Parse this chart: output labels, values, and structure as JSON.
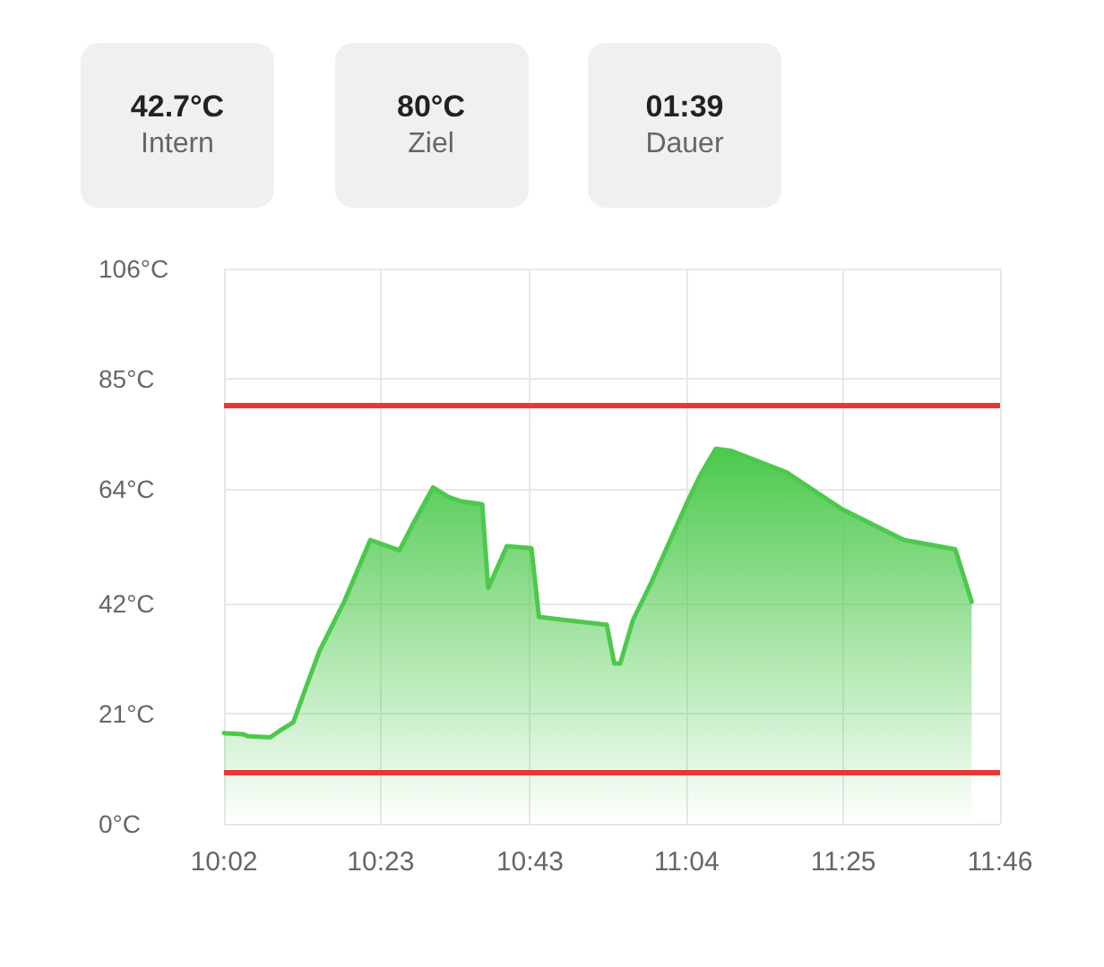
{
  "chart_data": [
    {
      "type": "other",
      "annotations": [
        "42.7°C",
        "Intern",
        "80°C",
        "Ziel",
        "01:39",
        "Dauer"
      ]
    },
    {
      "type": "area",
      "color": "#4cc94c",
      "grid": true,
      "marker": "none",
      "line_style": "solid",
      "x": [
        10.0333,
        10.075,
        10.0883,
        10.1367,
        10.1567,
        10.1883,
        10.2183,
        10.2467,
        10.3017,
        10.36,
        10.425,
        10.4583,
        10.5,
        10.535,
        10.5617,
        10.61,
        10.6233,
        10.665,
        10.72,
        10.7367,
        10.795,
        10.8883,
        10.905,
        10.9183,
        10.9467,
        10.9867,
        11.07,
        11.0967,
        11.1317,
        11.1667,
        11.29,
        11.4133,
        11.5517,
        11.6667,
        11.7033
      ],
      "values": [
        17.3,
        17.1,
        16.7,
        16.5,
        17.7,
        19.4,
        26.5,
        33.0,
        42.4,
        54.2,
        52.2,
        57.7,
        64.2,
        62.4,
        61.6,
        61.0,
        45.0,
        53.0,
        52.6,
        39.5,
        38.9,
        38.0,
        30.6,
        30.6,
        38.9,
        45.9,
        61.8,
        66.5,
        71.6,
        71.2,
        67.1,
        60.1,
        54.2,
        52.4,
        42.4
      ],
      "xlim": [
        10.0333,
        11.7667
      ],
      "xticks": [
        {
          "value": 10.0333,
          "label": "10:02"
        },
        {
          "value": 10.3833,
          "label": "10:23"
        },
        {
          "value": 10.7167,
          "label": "10:43"
        },
        {
          "value": 11.0667,
          "label": "11:04"
        },
        {
          "value": 11.4167,
          "label": "11:25"
        },
        {
          "value": 11.7667,
          "label": "11:46"
        }
      ],
      "ylim": [
        0,
        106
      ],
      "yticks": [
        {
          "value": 0,
          "label": "0°C"
        },
        {
          "value": 21,
          "label": "21°C"
        },
        {
          "value": 42,
          "label": "42°C"
        },
        {
          "value": 64,
          "label": "64°C"
        },
        {
          "value": 85,
          "label": "85°C"
        },
        {
          "value": 106,
          "label": "106°C"
        }
      ],
      "ref_lines": [
        {
          "axis": "y",
          "value": 80,
          "color": "#e53935"
        },
        {
          "axis": "y",
          "value": 10,
          "color": "#e53935"
        }
      ]
    }
  ]
}
